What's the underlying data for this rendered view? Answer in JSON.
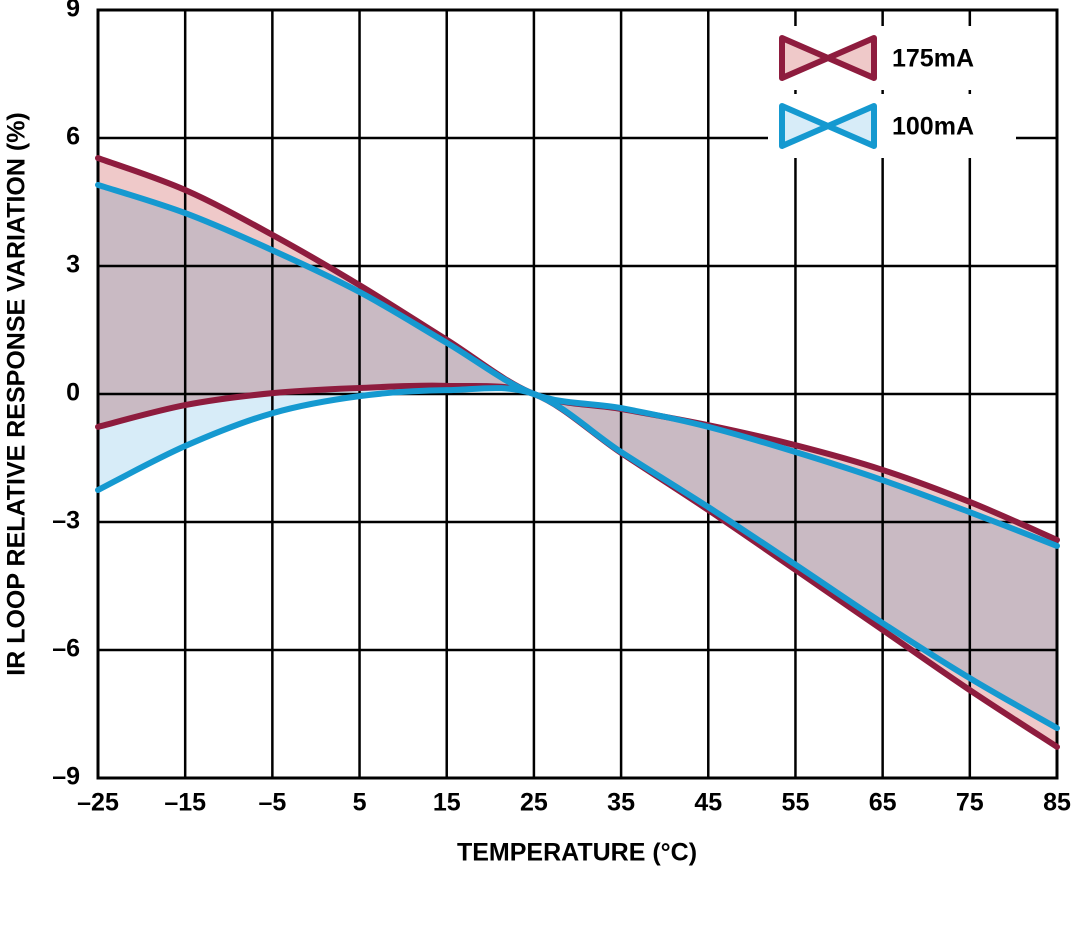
{
  "chart_data": {
    "type": "band",
    "x_label": "TEMPERATURE (°C)",
    "y_label": "IR LOOP RELATIVE RESPONSE VARIATION (%)",
    "x": [
      -25,
      -15,
      -5,
      5,
      15,
      25,
      35,
      45,
      55,
      65,
      75,
      85
    ],
    "series": [
      {
        "name": "175mA",
        "color": "#8e1c3e",
        "fill": "#efc9c9",
        "upper": [
          5.53,
          4.78,
          3.73,
          2.55,
          1.27,
          0,
          -0.35,
          -0.73,
          -1.2,
          -1.78,
          -2.53,
          -3.42
        ],
        "lower": [
          -0.77,
          -0.26,
          0.02,
          0.14,
          0.19,
          0,
          -1.38,
          -2.72,
          -4.12,
          -5.53,
          -6.94,
          -8.27
        ]
      },
      {
        "name": "100mA",
        "color": "#1599d0",
        "fill": "#d7ecf8",
        "upper": [
          4.9,
          4.24,
          3.37,
          2.39,
          1.2,
          0,
          -0.33,
          -0.77,
          -1.36,
          -2.02,
          -2.77,
          -3.56
        ],
        "lower": [
          -2.25,
          -1.22,
          -0.45,
          -0.05,
          0.09,
          0,
          -1.36,
          -2.65,
          -4.0,
          -5.37,
          -6.66,
          -7.83
        ]
      }
    ],
    "xlim": [
      -25,
      85
    ],
    "ylim": [
      -9,
      9
    ],
    "xticks": [
      {
        "value": -25,
        "label": "–25"
      },
      {
        "value": -15,
        "label": "–15"
      },
      {
        "value": -5,
        "label": "–5"
      },
      5,
      15,
      25,
      35,
      45,
      55,
      65,
      75,
      85
    ],
    "yticks": [
      {
        "value": -9,
        "label": "–9"
      },
      {
        "value": -6,
        "label": "–6"
      },
      {
        "value": -3,
        "label": "–3"
      },
      0,
      3,
      6,
      9
    ],
    "grid": true,
    "legend": "upper right"
  }
}
